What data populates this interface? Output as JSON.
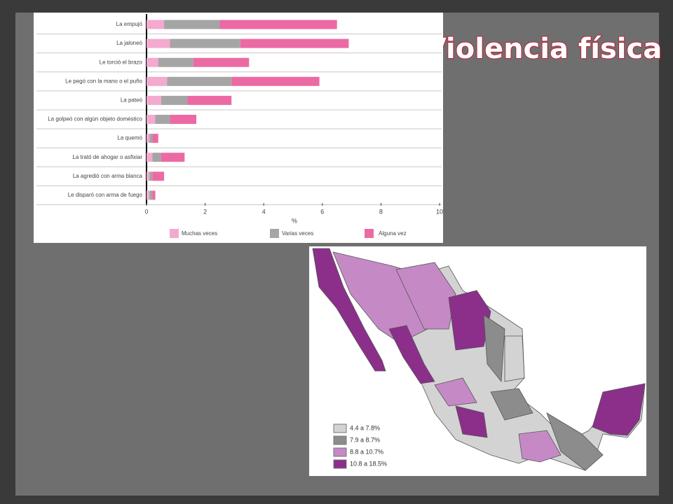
{
  "title": "Violencia física",
  "chart_data": {
    "type": "stacked-bar-horizontal",
    "categories": [
      "La empujó",
      "La jaloneó",
      "Le torció el brazo",
      "Le pegó con la mano o el puño",
      "La pateó",
      "La golpeó con algún objeto doméstico",
      "La quemó",
      "La trató de ahogar o asfixiar",
      "La agredió con arma blanca",
      "Le disparó con arma de fuego"
    ],
    "series": [
      {
        "name": "Muchas veces",
        "color": "#f4a9cf",
        "values": [
          0.6,
          0.8,
          0.4,
          0.7,
          0.5,
          0.3,
          0.1,
          0.2,
          0.1,
          0.1
        ]
      },
      {
        "name": "Varias veces",
        "color": "#a5a5a5",
        "values": [
          1.9,
          2.4,
          1.2,
          2.2,
          0.9,
          0.5,
          0.1,
          0.3,
          0.1,
          0.1
        ]
      },
      {
        "name": "Alguna vez",
        "color": "#ec6aa4",
        "values": [
          4.0,
          3.7,
          1.9,
          3.0,
          1.5,
          0.9,
          0.2,
          0.8,
          0.4,
          0.1
        ]
      }
    ],
    "x_label": "%",
    "xlim": [
      0,
      10
    ],
    "xticks": [
      0,
      2,
      4,
      6,
      8,
      10
    ]
  },
  "map": {
    "legend": [
      {
        "label": "4.4 a 7.8%",
        "color": "#d3d3d3"
      },
      {
        "label": "7.9 a 8.7%",
        "color": "#8c8c8c"
      },
      {
        "label": "8.8 a 10.7%",
        "color": "#c58ac5"
      },
      {
        "label": "10.8 a 18.5%",
        "color": "#8b2f8b"
      }
    ]
  }
}
